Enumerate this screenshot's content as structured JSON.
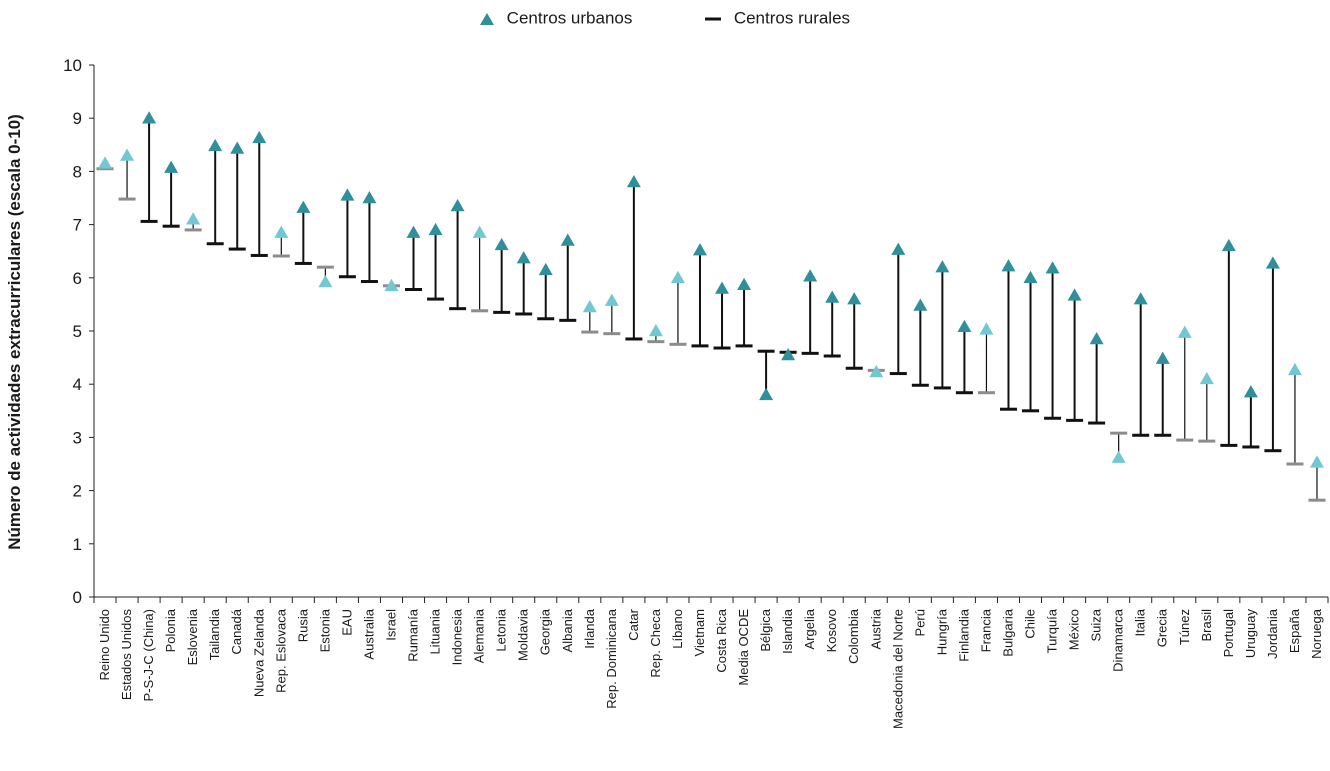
{
  "chart_data": {
    "type": "dot-range",
    "ylabel": "Número de actividades extracurriculares (escala 0-10)",
    "ylim": [
      0,
      10
    ],
    "yticks": [
      0,
      1,
      2,
      3,
      4,
      5,
      6,
      7,
      8,
      9,
      10
    ],
    "legend_position": "top-center",
    "colors": {
      "sig": "#2f8f9b",
      "nonsig": "#72c8d2",
      "line": "#111111",
      "rural_nonsig": "#8c8c8c",
      "axis": "#222222"
    },
    "series": [
      {
        "name": "Centros urbanos",
        "marker": "triangle",
        "color": "#2f8f9b"
      },
      {
        "name": "Centros rurales",
        "marker": "dash",
        "color": "#111111"
      }
    ],
    "categories": [
      "Reino Unido",
      "Estados Unidos",
      "P-S-J-C (China)",
      "Polonia",
      "Eslovenia",
      "Tailandia",
      "Canadá",
      "Nueva Zelanda",
      "Rep. Eslovaca",
      "Rusia",
      "Estonia",
      "EAU",
      "Australia",
      "Israel",
      "Rumanía",
      "Lituania",
      "Indonesia",
      "Alemania",
      "Letonia",
      "Moldavia",
      "Georgia",
      "Albania",
      "Irlanda",
      "Rep. Dominicana",
      "Catar",
      "Rep. Checa",
      "Líbano",
      "Vietnam",
      "Costa Rica",
      "Media OCDE",
      "Bélgica",
      "Islandia",
      "Argelia",
      "Kosovo",
      "Colombia",
      "Austria",
      "Macedonia del Norte",
      "Perú",
      "Hungría",
      "Finlandia",
      "Francia",
      "Bulgaria",
      "Chile",
      "Turquía",
      "México",
      "Suiza",
      "Dinamarca",
      "Italia",
      "Grecia",
      "Túnez",
      "Brasil",
      "Portugal",
      "Uruguay",
      "Jordania",
      "España",
      "Noruega"
    ],
    "urban": [
      8.15,
      8.3,
      9.0,
      8.07,
      7.1,
      8.48,
      8.43,
      8.63,
      6.85,
      7.32,
      5.92,
      7.55,
      7.5,
      5.85,
      6.85,
      6.9,
      7.35,
      6.85,
      6.62,
      6.37,
      6.15,
      6.7,
      5.45,
      5.57,
      7.8,
      5.0,
      6.0,
      6.52,
      5.8,
      5.87,
      3.8,
      4.55,
      6.03,
      5.63,
      5.6,
      4.23,
      6.53,
      5.48,
      6.2,
      5.08,
      5.03,
      6.22,
      6.0,
      6.18,
      5.67,
      4.85,
      2.62,
      5.6,
      4.48,
      4.97,
      4.1,
      6.6,
      3.85,
      6.27,
      4.27,
      2.53
    ],
    "rural": [
      8.05,
      7.48,
      7.06,
      6.97,
      6.9,
      6.64,
      6.54,
      6.42,
      6.41,
      6.27,
      6.2,
      6.02,
      5.93,
      5.85,
      5.78,
      5.6,
      5.42,
      5.38,
      5.35,
      5.32,
      5.23,
      5.2,
      4.98,
      4.95,
      4.85,
      4.8,
      4.75,
      4.72,
      4.68,
      4.72,
      4.62,
      4.6,
      4.58,
      4.53,
      4.3,
      4.26,
      4.2,
      3.98,
      3.93,
      3.84,
      3.84,
      3.53,
      3.5,
      3.36,
      3.32,
      3.27,
      3.08,
      3.04,
      3.04,
      2.95,
      2.93,
      2.85,
      2.82,
      2.75,
      2.5,
      1.82
    ],
    "significant": [
      false,
      false,
      true,
      true,
      false,
      true,
      true,
      true,
      false,
      true,
      false,
      true,
      true,
      false,
      true,
      true,
      true,
      false,
      true,
      true,
      true,
      true,
      false,
      false,
      true,
      false,
      false,
      true,
      true,
      true,
      true,
      true,
      true,
      true,
      true,
      false,
      true,
      true,
      true,
      true,
      false,
      true,
      true,
      true,
      true,
      true,
      false,
      true,
      true,
      false,
      false,
      true,
      true,
      true,
      false,
      false
    ]
  }
}
